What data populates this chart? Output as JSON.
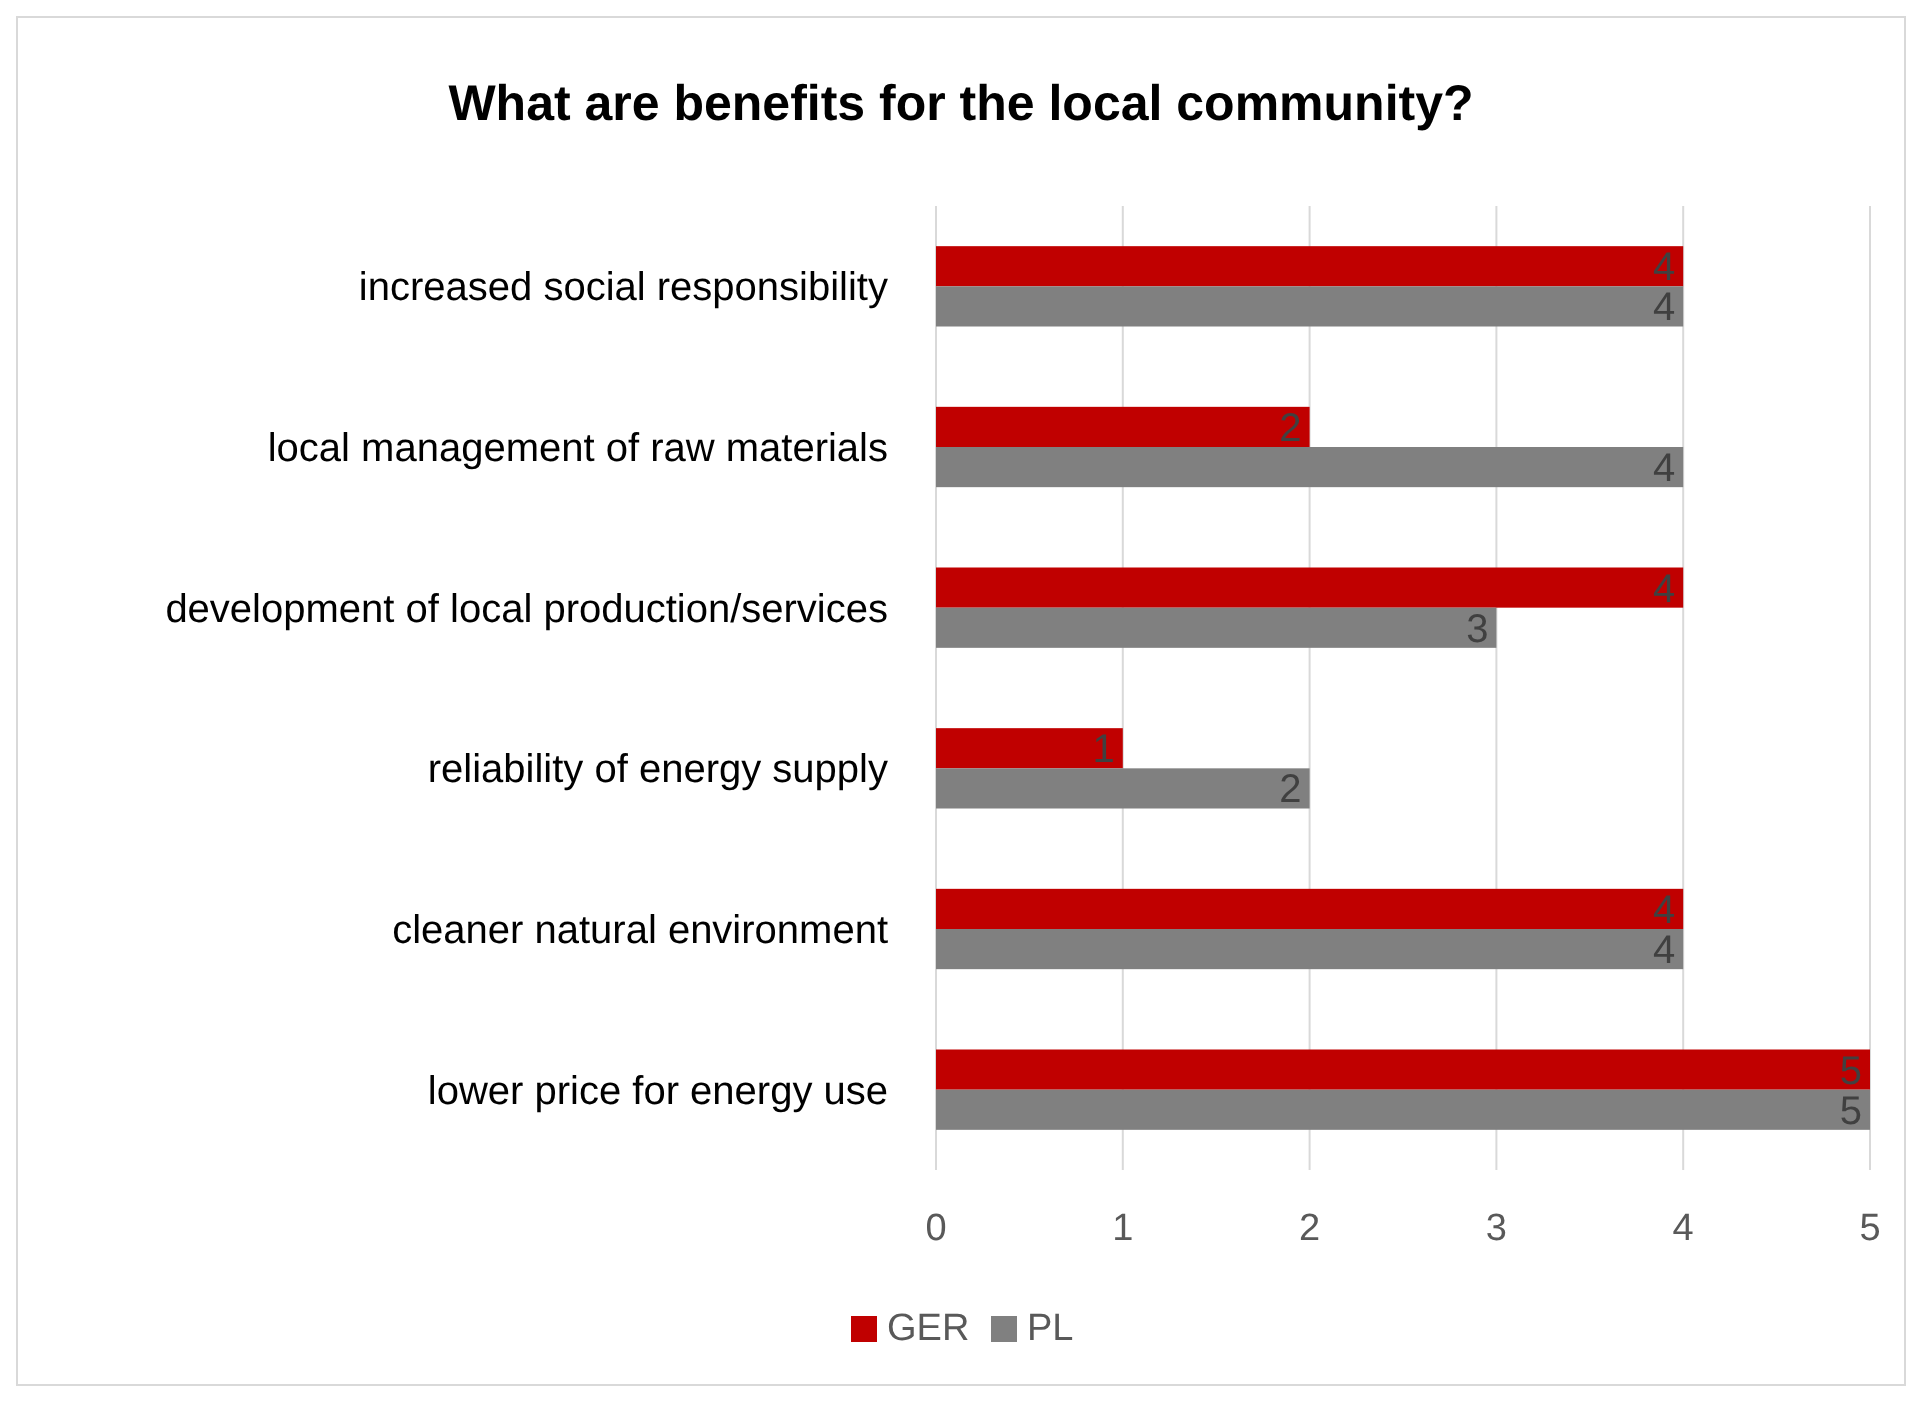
{
  "chart_data": {
    "type": "bar",
    "orientation": "horizontal",
    "title": "What are benefits for the local community?",
    "categories": [
      "increased social responsibility",
      "local management of raw materials",
      "development of local production/services",
      "reliability of energy supply",
      "cleaner natural environment",
      "lower price for energy use"
    ],
    "series": [
      {
        "name": "GER",
        "color": "#c00000",
        "values": [
          4,
          2,
          4,
          1,
          4,
          5
        ]
      },
      {
        "name": "PL",
        "color": "#808080",
        "values": [
          4,
          4,
          3,
          2,
          4,
          5
        ]
      }
    ],
    "xlim": [
      0,
      5
    ],
    "xticks": [
      0,
      1,
      2,
      3,
      4,
      5
    ],
    "grid": "x",
    "legend": "bottom",
    "data_labels": true
  }
}
